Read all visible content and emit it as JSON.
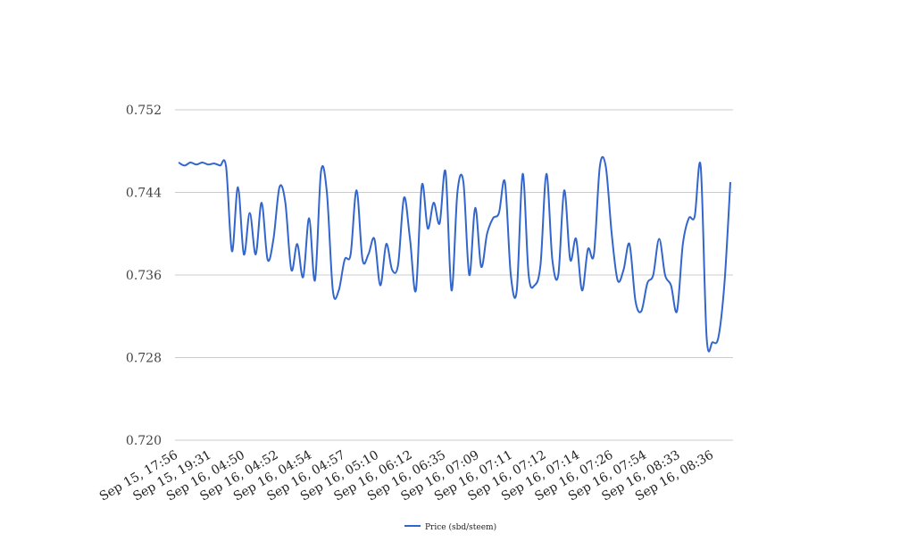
{
  "chart_data": {
    "type": "line",
    "title": "",
    "xlabel": "",
    "ylabel": "",
    "ylim": [
      0.72,
      0.752
    ],
    "yticks": [
      "0.720",
      "0.728",
      "0.736",
      "0.744",
      "0.752"
    ],
    "grid": true,
    "legend_position": "bottom",
    "x_tick_labels": [
      "Sep 15, 17:56",
      "Sep 15, 19:31",
      "Sep 16, 04:50",
      "Sep 16, 04:52",
      "Sep 16, 04:54",
      "Sep 16, 04:57",
      "Sep 16, 05:10",
      "Sep 16, 06:12",
      "Sep 16, 06:35",
      "Sep 16, 07:09",
      "Sep 16, 07:11",
      "Sep 16, 07:12",
      "Sep 16, 07:14",
      "Sep 16, 07:26",
      "Sep 16, 07:54",
      "Sep 16, 08:33",
      "Sep 16, 08:36"
    ],
    "series": [
      {
        "name": "Price (sbd/steem)",
        "color": "#3366cc",
        "values": [
          0.7469,
          0.7466,
          0.7469,
          0.7467,
          0.7469,
          0.7467,
          0.7468,
          0.7466,
          0.7465,
          0.7383,
          0.7445,
          0.738,
          0.742,
          0.738,
          0.743,
          0.7375,
          0.7395,
          0.7445,
          0.743,
          0.7365,
          0.739,
          0.7358,
          0.7415,
          0.7355,
          0.746,
          0.744,
          0.7345,
          0.7345,
          0.7375,
          0.738,
          0.7442,
          0.7375,
          0.738,
          0.7395,
          0.735,
          0.739,
          0.7365,
          0.737,
          0.7435,
          0.7395,
          0.7345,
          0.7447,
          0.7405,
          0.743,
          0.741,
          0.746,
          0.7345,
          0.744,
          0.745,
          0.736,
          0.7425,
          0.7368,
          0.74,
          0.7415,
          0.742,
          0.745,
          0.736,
          0.7345,
          0.7458,
          0.736,
          0.735,
          0.737,
          0.7458,
          0.7375,
          0.736,
          0.7442,
          0.7375,
          0.7395,
          0.7345,
          0.7385,
          0.738,
          0.7465,
          0.7465,
          0.74,
          0.7355,
          0.7365,
          0.739,
          0.7335,
          0.7325,
          0.7352,
          0.736,
          0.7395,
          0.736,
          0.735,
          0.7325,
          0.739,
          0.7415,
          0.7417,
          0.7465,
          0.73,
          0.7295,
          0.73,
          0.7352,
          0.745
        ]
      }
    ]
  }
}
